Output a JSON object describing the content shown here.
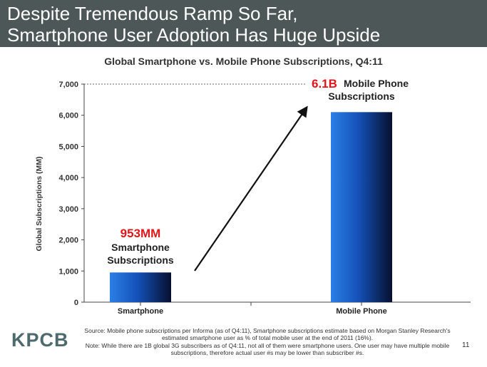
{
  "header": {
    "line1": "Despite Tremendous Ramp So Far,",
    "line2": "Smartphone User Adoption Has Huge Upside"
  },
  "chart_data": {
    "type": "bar",
    "title": "Global Smartphone vs. Mobile Phone Subscriptions, Q4:11",
    "ylabel": "Global Subscriptions (MM)",
    "xlabel": "",
    "ylim": [
      0,
      7000
    ],
    "yticks": [
      "0",
      "1,000",
      "2,000",
      "3,000",
      "4,000",
      "5,000",
      "6,000",
      "7,000"
    ],
    "ytick_values": [
      0,
      1000,
      2000,
      3000,
      4000,
      5000,
      6000,
      7000
    ],
    "categories": [
      "Smartphone",
      "Mobile Phone"
    ],
    "values": [
      953,
      6100
    ],
    "grid": false,
    "annotations": [
      {
        "value_text": "953MM",
        "label_line1": "Smartphone",
        "label_line2": "Subscriptions"
      },
      {
        "value_text": "6.1B",
        "label_line1": "Mobile Phone",
        "label_line2": "Subscriptions"
      }
    ]
  },
  "colors": {
    "header_bg": "#4d5758",
    "bar_light": "#1f6fd6",
    "bar_dark": "#08143a",
    "highlight_red": "#e0151b",
    "logo": "#4d6a6e"
  },
  "footer": {
    "logo": "KPCB",
    "source_line1": "Source: Mobile phone subscriptions per Informa (as of Q4:11), Smartphone subscriptions estimate based on Morgan Stanley Research's",
    "source_line2": "estimated smartphone user as % of total mobile user at the end of 2011 (16%).",
    "note_line1": "Note: While there are 1B global 3G subscribers as of Q4:11, not all of them were smartphone users. One user may have multiple mobile",
    "note_line2": "subscriptions, therefore actual user #s may be lower than subscriber #s.",
    "page_number": "11"
  }
}
